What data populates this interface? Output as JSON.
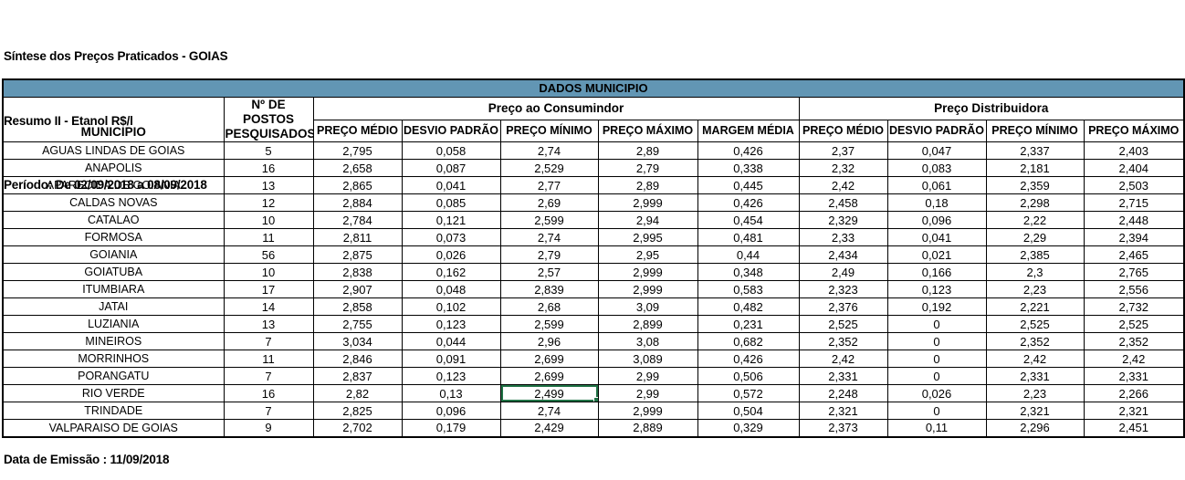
{
  "header": {
    "title": "Síntese dos Preços Praticados - GOIAS",
    "subtitle": "Resumo II - Etanol R$/l",
    "period": "Período: De 02/09/2018 a 08/09/2018"
  },
  "footer": {
    "emission": "Data de Emissão : 11/09/2018"
  },
  "colors": {
    "banner_bg": "#6296B4",
    "selection_green": "#217346",
    "border": "#000000",
    "background": "#FFFFFF"
  },
  "table": {
    "banner": "DADOS MUNICIPIO",
    "municipio_header": "MUNICIPIO",
    "postos_header": "Nº DE POSTOS PESQUISADOS",
    "consumer_group": "Preço ao Consumindor",
    "distributor_group": "Preço Distribuidora",
    "consumer_cols": [
      "PREÇO MÉDIO",
      "DESVIO PADRÃO",
      "PREÇO MÍNIMO",
      "PREÇO MÁXIMO",
      "MARGEM MÉDIA"
    ],
    "distributor_cols": [
      "PREÇO MÉDIO",
      "DESVIO PADRÃO",
      "PREÇO MÍNIMO",
      "PREÇO MÁXIMO"
    ],
    "rows": [
      {
        "municipio": "AGUAS LINDAS DE GOIAS",
        "postos": "5",
        "values": [
          "2,795",
          "0,058",
          "2,74",
          "2,89",
          "0,426",
          "2,37",
          "0,047",
          "2,337",
          "2,403"
        ]
      },
      {
        "municipio": "ANAPOLIS",
        "postos": "16",
        "values": [
          "2,658",
          "0,087",
          "2,529",
          "2,79",
          "0,338",
          "2,32",
          "0,083",
          "2,181",
          "2,404"
        ]
      },
      {
        "municipio": "APARECIDA DE GOIANIA",
        "postos": "13",
        "values": [
          "2,865",
          "0,041",
          "2,77",
          "2,89",
          "0,445",
          "2,42",
          "0,061",
          "2,359",
          "2,503"
        ]
      },
      {
        "municipio": "CALDAS NOVAS",
        "postos": "12",
        "values": [
          "2,884",
          "0,085",
          "2,69",
          "2,999",
          "0,426",
          "2,458",
          "0,18",
          "2,298",
          "2,715"
        ]
      },
      {
        "municipio": "CATALAO",
        "postos": "10",
        "values": [
          "2,784",
          "0,121",
          "2,599",
          "2,94",
          "0,454",
          "2,329",
          "0,096",
          "2,22",
          "2,448"
        ]
      },
      {
        "municipio": "FORMOSA",
        "postos": "11",
        "values": [
          "2,811",
          "0,073",
          "2,74",
          "2,995",
          "0,481",
          "2,33",
          "0,041",
          "2,29",
          "2,394"
        ]
      },
      {
        "municipio": "GOIANIA",
        "postos": "56",
        "values": [
          "2,875",
          "0,026",
          "2,79",
          "2,95",
          "0,44",
          "2,434",
          "0,021",
          "2,385",
          "2,465"
        ]
      },
      {
        "municipio": "GOIATUBA",
        "postos": "10",
        "values": [
          "2,838",
          "0,162",
          "2,57",
          "2,999",
          "0,348",
          "2,49",
          "0,166",
          "2,3",
          "2,765"
        ]
      },
      {
        "municipio": "ITUMBIARA",
        "postos": "17",
        "values": [
          "2,907",
          "0,048",
          "2,839",
          "2,999",
          "0,583",
          "2,323",
          "0,123",
          "2,23",
          "2,556"
        ]
      },
      {
        "municipio": "JATAI",
        "postos": "14",
        "values": [
          "2,858",
          "0,102",
          "2,68",
          "3,09",
          "0,482",
          "2,376",
          "0,192",
          "2,221",
          "2,732"
        ]
      },
      {
        "municipio": "LUZIANIA",
        "postos": "13",
        "values": [
          "2,755",
          "0,123",
          "2,599",
          "2,899",
          "0,231",
          "2,525",
          "0",
          "2,525",
          "2,525"
        ]
      },
      {
        "municipio": "MINEIROS",
        "postos": "7",
        "values": [
          "3,034",
          "0,044",
          "2,96",
          "3,08",
          "0,682",
          "2,352",
          "0",
          "2,352",
          "2,352"
        ]
      },
      {
        "municipio": "MORRINHOS",
        "postos": "11",
        "values": [
          "2,846",
          "0,091",
          "2,699",
          "3,089",
          "0,426",
          "2,42",
          "0",
          "2,42",
          "2,42"
        ]
      },
      {
        "municipio": "PORANGATU",
        "postos": "7",
        "values": [
          "2,837",
          "0,123",
          "2,699",
          "2,99",
          "0,506",
          "2,331",
          "0",
          "2,331",
          "2,331"
        ]
      },
      {
        "municipio": "RIO VERDE",
        "postos": "16",
        "values": [
          "2,82",
          "0,13",
          "2,499",
          "2,99",
          "0,572",
          "2,248",
          "0,026",
          "2,23",
          "2,266"
        ]
      },
      {
        "municipio": "TRINDADE",
        "postos": "7",
        "values": [
          "2,825",
          "0,096",
          "2,74",
          "2,999",
          "0,504",
          "2,321",
          "0",
          "2,321",
          "2,321"
        ]
      },
      {
        "municipio": "VALPARAISO DE GOIAS",
        "postos": "9",
        "values": [
          "2,702",
          "0,179",
          "2,429",
          "2,889",
          "0,329",
          "2,373",
          "0,11",
          "2,296",
          "2,451"
        ]
      }
    ]
  },
  "selection": {
    "municipio": "RIO VERDE",
    "group": "Preço ao Consumindor",
    "column": "PREÇO MÍNIMO",
    "value": "2,499",
    "row_index": 14,
    "value_index": 2
  }
}
